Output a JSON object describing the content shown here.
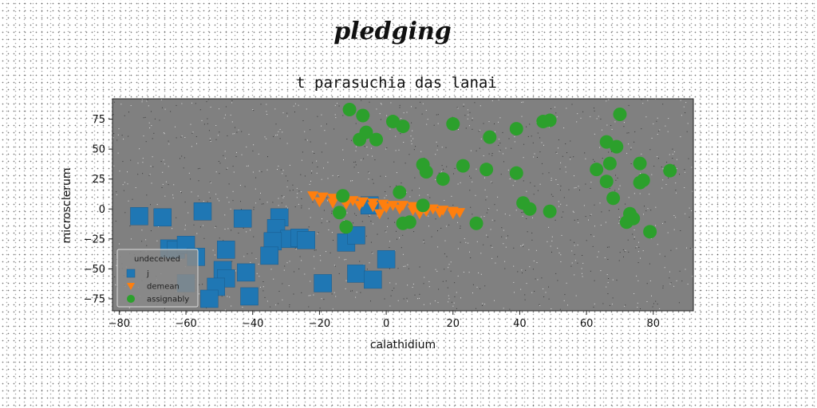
{
  "suptitle": "pledging",
  "chart_data": {
    "type": "scatter",
    "title": "t parasuchia das lanai",
    "xlabel": "calathidium",
    "ylabel": "microsclerum",
    "xlim": [
      -82,
      92
    ],
    "ylim": [
      -85,
      92
    ],
    "xticks": [
      -80,
      -60,
      -40,
      -20,
      0,
      20,
      40,
      60,
      80
    ],
    "yticks": [
      -75,
      -50,
      -25,
      0,
      25,
      50,
      75
    ],
    "grid": false,
    "legend": {
      "title": "undeceived",
      "placement": "lower-left"
    },
    "colors": {
      "plot_background": "#808080"
    },
    "series": [
      {
        "name": "j",
        "marker": "square",
        "color": "#1f77b4",
        "points": [
          [
            -74,
            -6
          ],
          [
            -67,
            -7
          ],
          [
            -55,
            -2
          ],
          [
            -65,
            -33
          ],
          [
            -63,
            -34
          ],
          [
            -60,
            -30
          ],
          [
            -57,
            -40
          ],
          [
            -48,
            -34
          ],
          [
            -43,
            -8
          ],
          [
            -32,
            -7
          ],
          [
            -33,
            -16
          ],
          [
            -29,
            -25
          ],
          [
            -34,
            -27
          ],
          [
            -26,
            -24
          ],
          [
            -24,
            -26
          ],
          [
            -12,
            -28
          ],
          [
            -9,
            -22
          ],
          [
            -5,
            3
          ],
          [
            -49,
            -51
          ],
          [
            -42,
            -53
          ],
          [
            -48,
            -58
          ],
          [
            -60,
            -62
          ],
          [
            -51,
            -65
          ],
          [
            -53,
            -75
          ],
          [
            -41,
            -73
          ],
          [
            -19,
            -62
          ],
          [
            -9,
            -54
          ],
          [
            -4,
            -59
          ],
          [
            0,
            -42
          ],
          [
            -35,
            -39
          ]
        ]
      },
      {
        "name": "demean",
        "marker": "triangle-down",
        "color": "#ff7f0e",
        "points": [
          [
            -22,
            11
          ],
          [
            -19,
            10
          ],
          [
            -16,
            9
          ],
          [
            -13,
            8
          ],
          [
            -10,
            7
          ],
          [
            -7,
            6
          ],
          [
            -4,
            5
          ],
          [
            -1,
            4
          ],
          [
            2,
            3
          ],
          [
            5,
            3
          ],
          [
            8,
            2
          ],
          [
            11,
            1
          ],
          [
            14,
            0
          ],
          [
            17,
            -1
          ],
          [
            20,
            -2
          ],
          [
            22,
            -3
          ],
          [
            -20,
            6
          ],
          [
            -16,
            5
          ],
          [
            -12,
            4
          ],
          [
            -8,
            3
          ],
          [
            -4,
            2
          ],
          [
            0,
            1
          ],
          [
            4,
            0
          ],
          [
            8,
            -1
          ],
          [
            12,
            -2
          ],
          [
            16,
            -3
          ],
          [
            20,
            -4
          ],
          [
            -2,
            -4
          ],
          [
            10,
            -4
          ]
        ]
      },
      {
        "name": "assignably",
        "marker": "circle",
        "color": "#2ca02c",
        "points": [
          [
            -11,
            83
          ],
          [
            -7,
            78
          ],
          [
            2,
            73
          ],
          [
            5,
            69
          ],
          [
            20,
            71
          ],
          [
            -8,
            58
          ],
          [
            -6,
            64
          ],
          [
            -3,
            58
          ],
          [
            31,
            60
          ],
          [
            39,
            67
          ],
          [
            47,
            73
          ],
          [
            49,
            74
          ],
          [
            70,
            79
          ],
          [
            66,
            56
          ],
          [
            69,
            52
          ],
          [
            11,
            37
          ],
          [
            12,
            31
          ],
          [
            23,
            36
          ],
          [
            30,
            33
          ],
          [
            17,
            25
          ],
          [
            39,
            30
          ],
          [
            63,
            33
          ],
          [
            67,
            38
          ],
          [
            76,
            38
          ],
          [
            85,
            32
          ],
          [
            66,
            23
          ],
          [
            76,
            22
          ],
          [
            77,
            24
          ],
          [
            4,
            14
          ],
          [
            -13,
            11
          ],
          [
            -14,
            -3
          ],
          [
            11,
            3
          ],
          [
            41,
            5
          ],
          [
            43,
            0
          ],
          [
            49,
            -2
          ],
          [
            68,
            9
          ],
          [
            73,
            -4
          ],
          [
            74,
            -8
          ],
          [
            72,
            -11
          ],
          [
            79,
            -19
          ],
          [
            27,
            -12
          ],
          [
            7,
            -11
          ],
          [
            5,
            -12
          ],
          [
            -12,
            -15
          ]
        ]
      }
    ]
  }
}
